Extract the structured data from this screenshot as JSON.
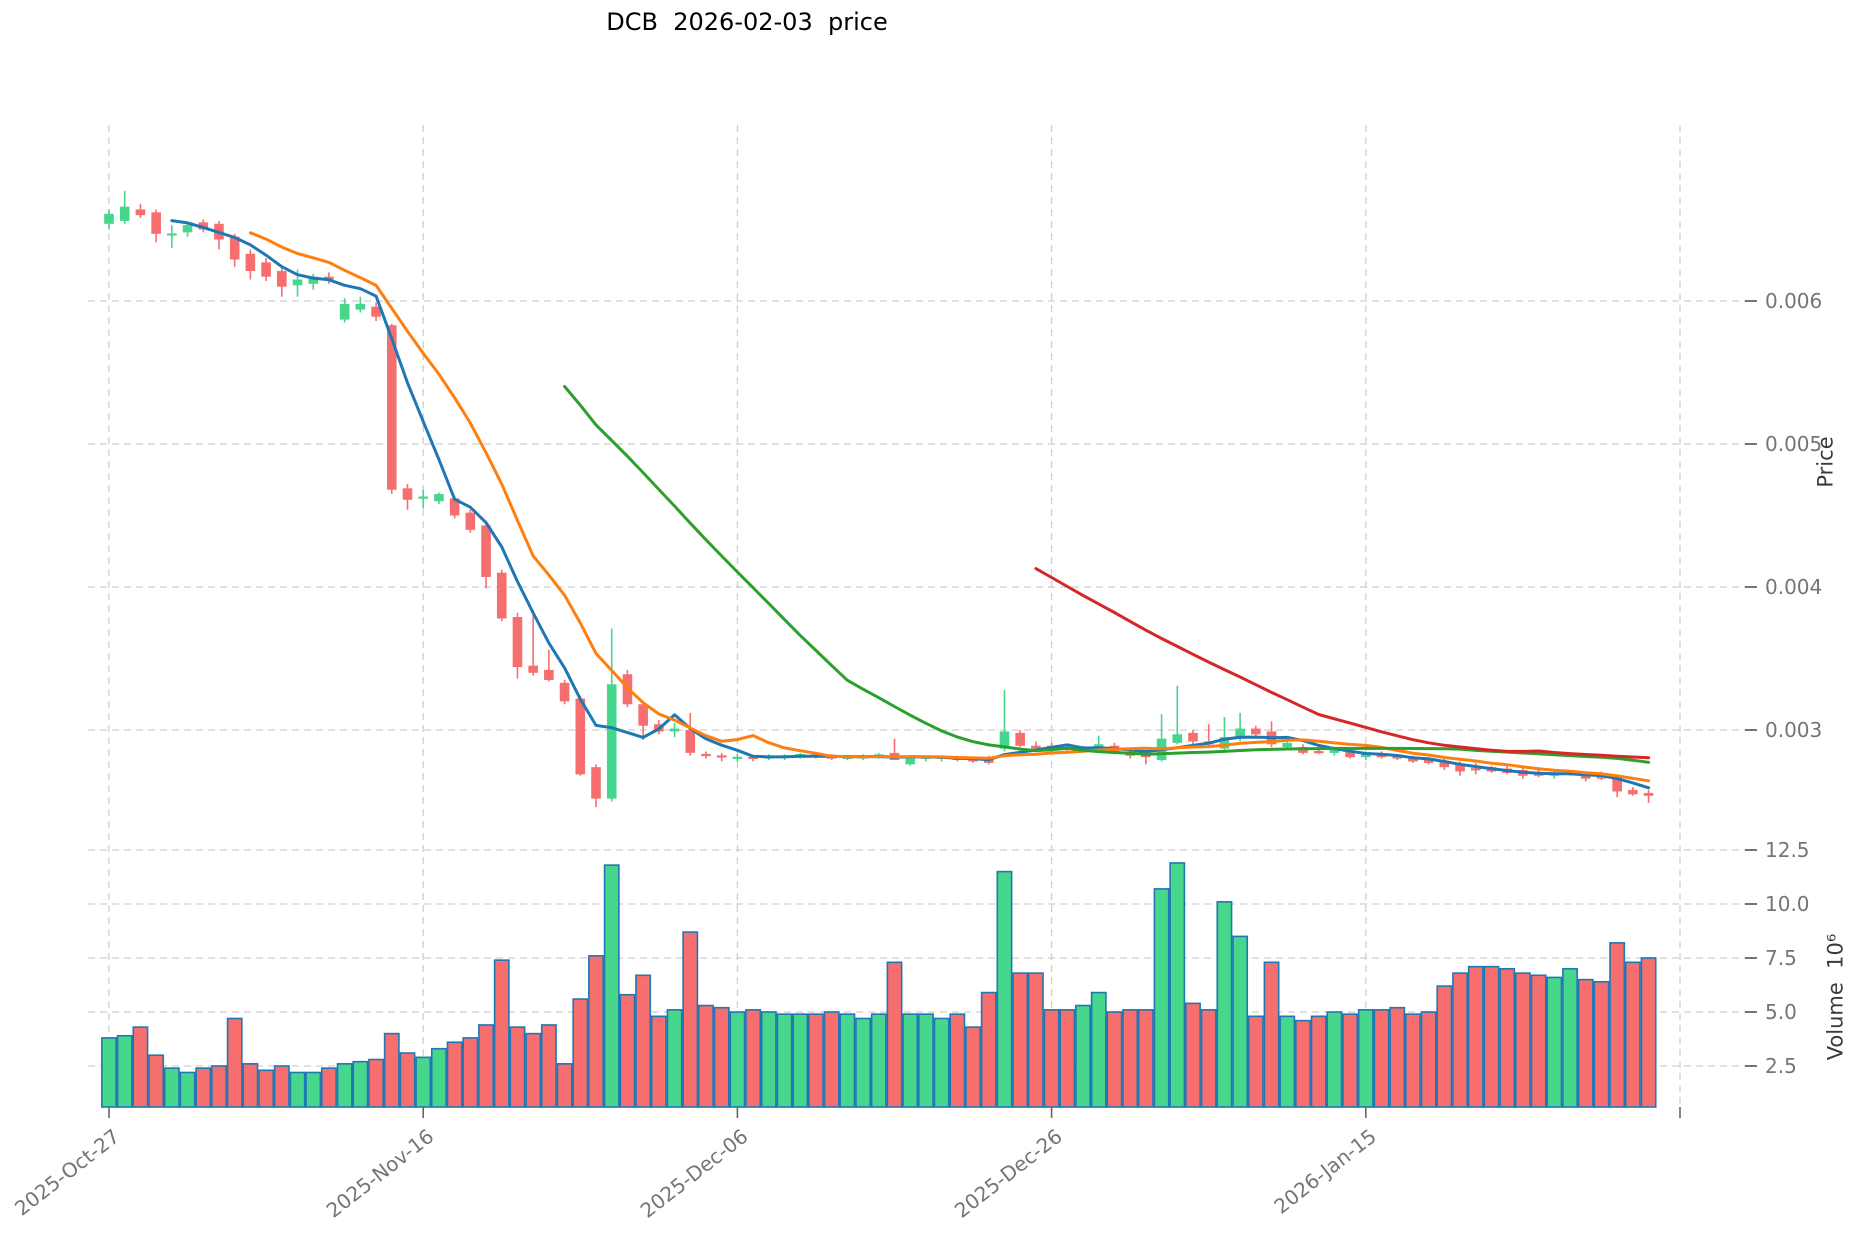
{
  "title": "DCB  2026-02-03  price",
  "chart_data": {
    "type": "candlestick+volume",
    "title": "DCB  2026-02-03  price",
    "price_axis": {
      "label": "Price",
      "ticks": [
        0.006,
        0.005,
        0.004,
        0.003
      ],
      "side": "right"
    },
    "volume_axis": {
      "label": "Volume  10⁶",
      "ticks": [
        12.5,
        10.0,
        7.5,
        5.0,
        2.5
      ],
      "unit": "10^6",
      "side": "right"
    },
    "x_axis": {
      "tick_positions": [
        0,
        20,
        40,
        60,
        80,
        100
      ],
      "tick_labels": [
        "2025-Oct-27",
        "2025-Nov-16",
        "2025-Dec-06",
        "2025-Dec-26",
        "2026-Jan-15",
        ""
      ]
    },
    "grid": true,
    "legend": "none",
    "moving_averages": [
      {
        "name": "MA5",
        "window": 5,
        "color": "#1f77b4"
      },
      {
        "name": "MA10",
        "window": 10,
        "color": "#ff7f0e"
      },
      {
        "name": "MA30",
        "window": 30,
        "color": "#2ca02c"
      },
      {
        "name": "MA60",
        "window": 60,
        "color": "#d62728"
      }
    ],
    "colors": {
      "up": "#46d68c",
      "down": "#f66e6e",
      "volume_edge": "#1f77b4",
      "grid": "#cfcfcf",
      "tick_text": "#757575",
      "tick_mark": "#666666"
    },
    "columns": [
      "date",
      "open",
      "high",
      "low",
      "close",
      "volume_millions"
    ],
    "candles": [
      [
        "2025-10-27",
        0.00654,
        0.00664,
        0.0065,
        0.00661,
        3.8
      ],
      [
        "2025-10-28",
        0.00656,
        0.00677,
        0.00654,
        0.00666,
        3.9
      ],
      [
        "2025-10-29",
        0.00664,
        0.00668,
        0.00658,
        0.0066,
        4.3
      ],
      [
        "2025-10-30",
        0.00662,
        0.00664,
        0.00641,
        0.00647,
        3.0
      ],
      [
        "2025-10-31",
        0.00646,
        0.00653,
        0.00637,
        0.00647,
        2.4
      ],
      [
        "2025-11-01",
        0.00648,
        0.00654,
        0.00645,
        0.00653,
        2.2
      ],
      [
        "2025-11-02",
        0.00655,
        0.00657,
        0.00648,
        0.0065,
        2.4
      ],
      [
        "2025-11-03",
        0.00654,
        0.00656,
        0.00636,
        0.00643,
        2.5
      ],
      [
        "2025-11-04",
        0.00645,
        0.00647,
        0.00624,
        0.00629,
        4.7
      ],
      [
        "2025-11-05",
        0.00633,
        0.00636,
        0.00615,
        0.00621,
        2.6
      ],
      [
        "2025-11-06",
        0.00627,
        0.0063,
        0.00614,
        0.00617,
        2.3
      ],
      [
        "2025-11-07",
        0.00621,
        0.00623,
        0.00603,
        0.0061,
        2.5
      ],
      [
        "2025-11-08",
        0.00611,
        0.00622,
        0.00603,
        0.00615,
        2.2
      ],
      [
        "2025-11-09",
        0.00612,
        0.00619,
        0.00608,
        0.00617,
        2.2
      ],
      [
        "2025-11-10",
        0.00617,
        0.0062,
        0.00612,
        0.00615,
        2.4
      ],
      [
        "2025-11-11",
        0.00587,
        0.00602,
        0.00585,
        0.00598,
        2.6
      ],
      [
        "2025-11-12",
        0.00594,
        0.00603,
        0.00592,
        0.00598,
        2.7
      ],
      [
        "2025-11-13",
        0.00596,
        0.00599,
        0.00586,
        0.00589,
        2.8
      ],
      [
        "2025-11-14",
        0.00583,
        0.00584,
        0.00465,
        0.00468,
        4.0
      ],
      [
        "2025-11-15",
        0.00469,
        0.00472,
        0.00454,
        0.00461,
        3.1
      ],
      [
        "2025-11-16",
        0.00462,
        0.00468,
        0.00455,
        0.00463,
        2.9
      ],
      [
        "2025-11-17",
        0.0046,
        0.00466,
        0.00458,
        0.00465,
        3.3
      ],
      [
        "2025-11-18",
        0.00462,
        0.00464,
        0.00448,
        0.0045,
        3.6
      ],
      [
        "2025-11-19",
        0.00452,
        0.00454,
        0.00438,
        0.0044,
        3.8
      ],
      [
        "2025-11-20",
        0.00443,
        0.00444,
        0.00399,
        0.00407,
        4.4
      ],
      [
        "2025-11-21",
        0.0041,
        0.00412,
        0.00376,
        0.00378,
        7.4
      ],
      [
        "2025-11-22",
        0.00379,
        0.00382,
        0.00336,
        0.00344,
        4.3
      ],
      [
        "2025-11-23",
        0.00345,
        0.00384,
        0.00338,
        0.0034,
        4.0
      ],
      [
        "2025-11-24",
        0.00342,
        0.00356,
        0.00334,
        0.00335,
        4.4
      ],
      [
        "2025-11-25",
        0.00333,
        0.00335,
        0.00318,
        0.0032,
        2.6
      ],
      [
        "2025-11-26",
        0.00322,
        0.00324,
        0.00268,
        0.00269,
        5.6
      ],
      [
        "2025-11-27",
        0.00274,
        0.00276,
        0.00246,
        0.00252,
        7.6
      ],
      [
        "2025-11-28",
        0.00252,
        0.00371,
        0.0025,
        0.00332,
        11.8
      ],
      [
        "2025-11-29",
        0.00339,
        0.00342,
        0.00316,
        0.00318,
        5.8
      ],
      [
        "2025-11-30",
        0.00318,
        0.0032,
        0.00293,
        0.00303,
        6.7
      ],
      [
        "2025-12-01",
        0.00304,
        0.00307,
        0.00297,
        0.00299,
        4.8
      ],
      [
        "2025-12-02",
        0.00299,
        0.00305,
        0.00295,
        0.00301,
        5.1
      ],
      [
        "2025-12-03",
        0.003,
        0.00312,
        0.00282,
        0.00284,
        8.7
      ],
      [
        "2025-12-04",
        0.00283,
        0.00285,
        0.0028,
        0.00282,
        5.3
      ],
      [
        "2025-12-05",
        0.00282,
        0.00284,
        0.00278,
        0.00281,
        5.2
      ],
      [
        "2025-12-06",
        0.0028,
        0.00283,
        0.00278,
        0.00281,
        5.0
      ],
      [
        "2025-12-07",
        0.00281,
        0.00282,
        0.00278,
        0.0028,
        5.1
      ],
      [
        "2025-12-08",
        0.0028,
        0.00283,
        0.00279,
        0.00282,
        5.0
      ],
      [
        "2025-12-09",
        0.00281,
        0.00283,
        0.00279,
        0.00282,
        4.9
      ],
      [
        "2025-12-10",
        0.00282,
        0.00284,
        0.0028,
        0.00283,
        4.9
      ],
      [
        "2025-12-11",
        0.00283,
        0.00284,
        0.0028,
        0.00281,
        4.9
      ],
      [
        "2025-12-12",
        0.00282,
        0.00283,
        0.00279,
        0.0028,
        5.0
      ],
      [
        "2025-12-13",
        0.0028,
        0.00282,
        0.00279,
        0.00281,
        4.9
      ],
      [
        "2025-12-14",
        0.0028,
        0.00283,
        0.00279,
        0.00282,
        4.7
      ],
      [
        "2025-12-15",
        0.00281,
        0.00284,
        0.0028,
        0.00283,
        4.9
      ],
      [
        "2025-12-16",
        0.00284,
        0.00294,
        0.00279,
        0.00279,
        7.3
      ],
      [
        "2025-12-17",
        0.00276,
        0.00282,
        0.00275,
        0.00281,
        4.9
      ],
      [
        "2025-12-18",
        0.0028,
        0.00282,
        0.00278,
        0.00281,
        4.9
      ],
      [
        "2025-12-19",
        0.0028,
        0.00282,
        0.00278,
        0.00281,
        4.7
      ],
      [
        "2025-12-20",
        0.00281,
        0.00282,
        0.00278,
        0.00279,
        4.9
      ],
      [
        "2025-12-21",
        0.0028,
        0.00281,
        0.00277,
        0.00278,
        4.3
      ],
      [
        "2025-12-22",
        0.0028,
        0.00282,
        0.00276,
        0.00277,
        5.9
      ],
      [
        "2025-12-23",
        0.00287,
        0.00328,
        0.00285,
        0.00299,
        11.5
      ],
      [
        "2025-12-24",
        0.00298,
        0.003,
        0.00288,
        0.00289,
        6.8
      ],
      [
        "2025-12-25",
        0.00289,
        0.00292,
        0.00285,
        0.00287,
        6.8
      ],
      [
        "2025-12-26",
        0.00289,
        0.00291,
        0.00285,
        0.00287,
        5.1
      ],
      [
        "2025-12-27",
        0.00288,
        0.0029,
        0.00284,
        0.00286,
        5.1
      ],
      [
        "2025-12-28",
        0.00286,
        0.00289,
        0.00284,
        0.00288,
        5.3
      ],
      [
        "2025-12-29",
        0.00287,
        0.00296,
        0.00285,
        0.0029,
        5.9
      ],
      [
        "2025-12-30",
        0.00289,
        0.00291,
        0.00283,
        0.00284,
        5.0
      ],
      [
        "2025-12-31",
        0.00284,
        0.00286,
        0.0028,
        0.00282,
        5.1
      ],
      [
        "2026-01-01",
        0.00284,
        0.00285,
        0.00276,
        0.00281,
        5.1
      ],
      [
        "2026-01-02",
        0.00279,
        0.00311,
        0.00278,
        0.00294,
        10.7
      ],
      [
        "2026-01-03",
        0.00291,
        0.00331,
        0.0029,
        0.00297,
        11.9
      ],
      [
        "2026-01-04",
        0.00298,
        0.003,
        0.0029,
        0.00292,
        5.4
      ],
      [
        "2026-01-05",
        0.00292,
        0.00304,
        0.00288,
        0.0029,
        5.1
      ],
      [
        "2026-01-06",
        0.00287,
        0.00309,
        0.00286,
        0.00295,
        10.1
      ],
      [
        "2026-01-07",
        0.00294,
        0.00312,
        0.00292,
        0.00301,
        8.5
      ],
      [
        "2026-01-08",
        0.00301,
        0.00303,
        0.00296,
        0.00297,
        4.8
      ],
      [
        "2026-01-09",
        0.00299,
        0.00306,
        0.00288,
        0.0029,
        7.3
      ],
      [
        "2026-01-10",
        0.00288,
        0.00292,
        0.00286,
        0.00291,
        4.8
      ],
      [
        "2026-01-11",
        0.00288,
        0.0029,
        0.00283,
        0.00284,
        4.6
      ],
      [
        "2026-01-12",
        0.00285,
        0.00287,
        0.00283,
        0.00284,
        4.8
      ],
      [
        "2026-01-13",
        0.00284,
        0.00288,
        0.00282,
        0.00286,
        5.0
      ],
      [
        "2026-01-14",
        0.00285,
        0.00286,
        0.0028,
        0.00281,
        4.9
      ],
      [
        "2026-01-15",
        0.00281,
        0.00284,
        0.00279,
        0.00283,
        5.1
      ],
      [
        "2026-01-16",
        0.00283,
        0.00285,
        0.0028,
        0.00281,
        5.1
      ],
      [
        "2026-01-17",
        0.00282,
        0.00283,
        0.00279,
        0.0028,
        5.2
      ],
      [
        "2026-01-18",
        0.00281,
        0.00282,
        0.00277,
        0.00278,
        4.9
      ],
      [
        "2026-01-19",
        0.00279,
        0.00281,
        0.00276,
        0.00277,
        5.0
      ],
      [
        "2026-01-20",
        0.00278,
        0.0028,
        0.00272,
        0.00274,
        6.2
      ],
      [
        "2026-01-21",
        0.00276,
        0.00278,
        0.00268,
        0.00271,
        6.8
      ],
      [
        "2026-01-22",
        0.00273,
        0.00277,
        0.00269,
        0.00272,
        7.1
      ],
      [
        "2026-01-23",
        0.00274,
        0.00275,
        0.0027,
        0.00271,
        7.1
      ],
      [
        "2026-01-24",
        0.00273,
        0.00275,
        0.00269,
        0.0027,
        7.0
      ],
      [
        "2026-01-25",
        0.00272,
        0.00274,
        0.00266,
        0.00268,
        6.8
      ],
      [
        "2026-01-26",
        0.0027,
        0.00272,
        0.00267,
        0.00268,
        6.7
      ],
      [
        "2026-01-27",
        0.00268,
        0.00272,
        0.00266,
        0.0027,
        6.6
      ],
      [
        "2026-01-28",
        0.00269,
        0.00272,
        0.00268,
        0.00271,
        7.0
      ],
      [
        "2026-01-29",
        0.0027,
        0.00271,
        0.00264,
        0.00266,
        6.5
      ],
      [
        "2026-01-30",
        0.00269,
        0.00271,
        0.00265,
        0.00266,
        6.4
      ],
      [
        "2026-01-31",
        0.00267,
        0.00268,
        0.00253,
        0.00257,
        8.2
      ],
      [
        "2026-02-01",
        0.00258,
        0.0026,
        0.00254,
        0.00255,
        7.3
      ],
      [
        "2026-02-02",
        0.00256,
        0.00258,
        0.00249,
        0.00254,
        7.5
      ]
    ]
  }
}
